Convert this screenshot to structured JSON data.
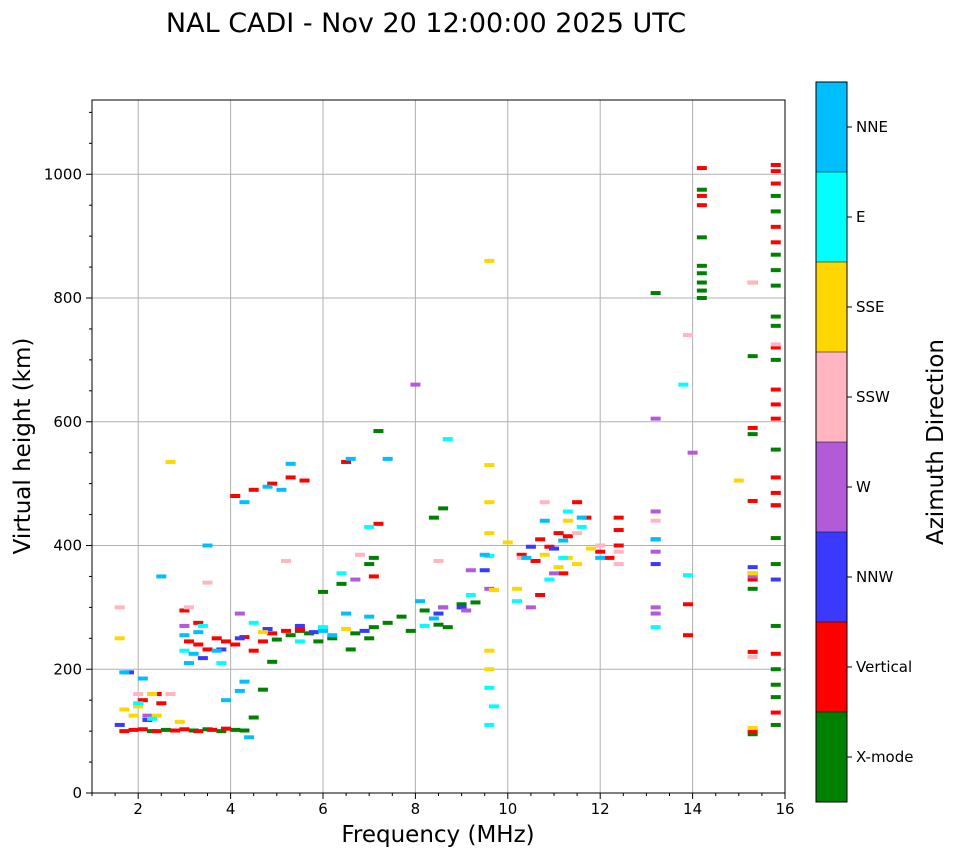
{
  "chart_data": {
    "type": "scatter",
    "title": "NAL CADI - Nov 20 12:00:00 2025 UTC",
    "xlabel": "Frequency (MHz)",
    "ylabel": "Virtual height (km)",
    "xlim": [
      1,
      16
    ],
    "ylim": [
      0,
      1120
    ],
    "xticks": [
      2,
      4,
      6,
      8,
      10,
      12,
      14,
      16
    ],
    "yticks": [
      0,
      200,
      400,
      600,
      800,
      1000
    ],
    "grid": true,
    "colorbar": {
      "label": "Azimuth Direction",
      "categories": [
        "X-mode",
        "Vertical",
        "NNW",
        "W",
        "SSW",
        "SSE",
        "E",
        "NNE"
      ],
      "colors": [
        "#008000",
        "#ff0000",
        "#3a3aff",
        "#b25ad8",
        "#ffb6c1",
        "#ffd700",
        "#00ffff",
        "#00bfff"
      ]
    },
    "series": [
      {
        "name": "X-mode",
        "points": [
          [
            2.3,
            100
          ],
          [
            2.6,
            102
          ],
          [
            3.2,
            101
          ],
          [
            3.5,
            103
          ],
          [
            3.8,
            100
          ],
          [
            4.1,
            102
          ],
          [
            4.3,
            101
          ],
          [
            4.5,
            122
          ],
          [
            4.7,
            167
          ],
          [
            4.9,
            212
          ],
          [
            5.0,
            248
          ],
          [
            5.3,
            255
          ],
          [
            5.5,
            262
          ],
          [
            5.7,
            258
          ],
          [
            5.9,
            245
          ],
          [
            6.2,
            250
          ],
          [
            6.6,
            232
          ],
          [
            6.7,
            258
          ],
          [
            7.0,
            250
          ],
          [
            7.1,
            268
          ],
          [
            7.4,
            275
          ],
          [
            7.7,
            285
          ],
          [
            7.9,
            262
          ],
          [
            8.2,
            295
          ],
          [
            8.5,
            272
          ],
          [
            8.6,
            300
          ],
          [
            8.7,
            268
          ],
          [
            9.0,
            305
          ],
          [
            9.3,
            308
          ],
          [
            6.0,
            325
          ],
          [
            6.4,
            338
          ],
          [
            7.0,
            370
          ],
          [
            7.1,
            380
          ],
          [
            7.2,
            585
          ],
          [
            8.4,
            445
          ],
          [
            8.6,
            460
          ],
          [
            13.2,
            808
          ],
          [
            14.2,
            800
          ],
          [
            14.2,
            812
          ],
          [
            14.2,
            825
          ],
          [
            14.2,
            840
          ],
          [
            14.2,
            852
          ],
          [
            14.2,
            898
          ],
          [
            14.2,
            975
          ],
          [
            15.3,
            825
          ],
          [
            15.3,
            706
          ],
          [
            15.3,
            580
          ],
          [
            15.3,
            95
          ],
          [
            15.3,
            330
          ],
          [
            15.8,
            110
          ],
          [
            15.8,
            155
          ],
          [
            15.8,
            175
          ],
          [
            15.8,
            200
          ],
          [
            15.8,
            270
          ],
          [
            15.8,
            370
          ],
          [
            15.8,
            412
          ],
          [
            15.8,
            465
          ],
          [
            15.8,
            555
          ],
          [
            15.8,
            700
          ],
          [
            15.8,
            755
          ],
          [
            15.8,
            770
          ],
          [
            15.8,
            820
          ],
          [
            15.8,
            845
          ],
          [
            15.8,
            870
          ],
          [
            15.8,
            940
          ],
          [
            15.8,
            965
          ]
        ]
      },
      {
        "name": "Vertical",
        "points": [
          [
            1.7,
            100
          ],
          [
            1.9,
            102
          ],
          [
            2.1,
            103
          ],
          [
            2.4,
            100
          ],
          [
            2.8,
            101
          ],
          [
            3.0,
            103
          ],
          [
            3.3,
            100
          ],
          [
            3.6,
            102
          ],
          [
            3.9,
            104
          ],
          [
            2.1,
            150
          ],
          [
            2.5,
            145
          ],
          [
            2.4,
            160
          ],
          [
            3.1,
            245
          ],
          [
            3.3,
            240
          ],
          [
            3.5,
            232
          ],
          [
            3.7,
            250
          ],
          [
            3.9,
            245
          ],
          [
            4.1,
            240
          ],
          [
            4.3,
            252
          ],
          [
            4.5,
            230
          ],
          [
            4.7,
            245
          ],
          [
            4.9,
            258
          ],
          [
            5.2,
            262
          ],
          [
            5.5,
            265
          ],
          [
            4.1,
            480
          ],
          [
            4.5,
            490
          ],
          [
            4.9,
            500
          ],
          [
            5.3,
            510
          ],
          [
            5.6,
            505
          ],
          [
            6.5,
            535
          ],
          [
            7.2,
            435
          ],
          [
            7.1,
            350
          ],
          [
            3.0,
            295
          ],
          [
            3.3,
            275
          ],
          [
            10.3,
            385
          ],
          [
            10.6,
            375
          ],
          [
            10.7,
            320
          ],
          [
            10.7,
            410
          ],
          [
            10.9,
            398
          ],
          [
            11.1,
            420
          ],
          [
            11.2,
            355
          ],
          [
            11.3,
            415
          ],
          [
            11.5,
            470
          ],
          [
            11.7,
            445
          ],
          [
            12.0,
            390
          ],
          [
            12.4,
            425
          ],
          [
            12.4,
            445
          ],
          [
            12.4,
            400
          ],
          [
            12.2,
            380
          ],
          [
            13.9,
            305
          ],
          [
            13.9,
            255
          ],
          [
            14.2,
            950
          ],
          [
            14.2,
            965
          ],
          [
            14.2,
            1010
          ],
          [
            15.3,
            472
          ],
          [
            15.3,
            590
          ],
          [
            15.3,
            345
          ],
          [
            15.3,
            355
          ],
          [
            15.3,
            100
          ],
          [
            15.3,
            228
          ],
          [
            15.8,
            130
          ],
          [
            15.8,
            225
          ],
          [
            15.8,
            465
          ],
          [
            15.8,
            485
          ],
          [
            15.8,
            510
          ],
          [
            15.8,
            605
          ],
          [
            15.8,
            628
          ],
          [
            15.8,
            652
          ],
          [
            15.8,
            720
          ],
          [
            15.8,
            890
          ],
          [
            15.8,
            915
          ],
          [
            15.8,
            985
          ],
          [
            15.8,
            1005
          ],
          [
            15.8,
            1015
          ]
        ]
      },
      {
        "name": "NNW",
        "points": [
          [
            1.6,
            110
          ],
          [
            1.8,
            195
          ],
          [
            2.2,
            118
          ],
          [
            3.4,
            218
          ],
          [
            3.8,
            232
          ],
          [
            4.2,
            250
          ],
          [
            4.8,
            265
          ],
          [
            5.5,
            270
          ],
          [
            5.8,
            260
          ],
          [
            6.9,
            262
          ],
          [
            8.5,
            290
          ],
          [
            9.0,
            300
          ],
          [
            9.5,
            360
          ],
          [
            10.5,
            398
          ],
          [
            11.0,
            395
          ],
          [
            13.2,
            370
          ],
          [
            13.2,
            410
          ],
          [
            15.3,
            365
          ],
          [
            15.8,
            345
          ]
        ]
      },
      {
        "name": "W",
        "points": [
          [
            2.2,
            125
          ],
          [
            3.0,
            270
          ],
          [
            4.2,
            290
          ],
          [
            6.7,
            345
          ],
          [
            8.0,
            660
          ],
          [
            8.6,
            300
          ],
          [
            9.1,
            295
          ],
          [
            9.2,
            360
          ],
          [
            9.6,
            330
          ],
          [
            10.5,
            300
          ],
          [
            11.0,
            355
          ],
          [
            13.2,
            290
          ],
          [
            13.2,
            300
          ],
          [
            13.2,
            390
          ],
          [
            13.2,
            455
          ],
          [
            13.2,
            605
          ],
          [
            14.0,
            550
          ],
          [
            15.3,
            350
          ]
        ]
      },
      {
        "name": "SSW",
        "points": [
          [
            1.6,
            300
          ],
          [
            2.0,
            160
          ],
          [
            2.7,
            160
          ],
          [
            3.1,
            300
          ],
          [
            3.5,
            340
          ],
          [
            5.2,
            375
          ],
          [
            6.8,
            385
          ],
          [
            8.5,
            375
          ],
          [
            10.3,
            380
          ],
          [
            10.8,
            470
          ],
          [
            11.5,
            420
          ],
          [
            12.0,
            400
          ],
          [
            12.4,
            370
          ],
          [
            12.4,
            390
          ],
          [
            13.2,
            440
          ],
          [
            13.9,
            740
          ],
          [
            15.3,
            220
          ],
          [
            15.3,
            825
          ],
          [
            15.8,
            725
          ]
        ]
      },
      {
        "name": "SSE",
        "points": [
          [
            1.6,
            250
          ],
          [
            1.7,
            135
          ],
          [
            1.9,
            125
          ],
          [
            2.0,
            140
          ],
          [
            2.3,
            160
          ],
          [
            2.4,
            125
          ],
          [
            2.7,
            535
          ],
          [
            2.9,
            115
          ],
          [
            4.7,
            260
          ],
          [
            6.5,
            265
          ],
          [
            9.6,
            860
          ],
          [
            9.6,
            530
          ],
          [
            9.6,
            470
          ],
          [
            9.6,
            420
          ],
          [
            9.6,
            230
          ],
          [
            9.6,
            200
          ],
          [
            9.7,
            328
          ],
          [
            10.0,
            405
          ],
          [
            10.2,
            330
          ],
          [
            10.8,
            385
          ],
          [
            11.1,
            365
          ],
          [
            11.3,
            380
          ],
          [
            11.5,
            370
          ],
          [
            11.3,
            440
          ],
          [
            11.8,
            395
          ],
          [
            15.0,
            505
          ],
          [
            15.3,
            355
          ],
          [
            15.3,
            105
          ]
        ]
      },
      {
        "name": "E",
        "points": [
          [
            2.0,
            145
          ],
          [
            2.3,
            120
          ],
          [
            3.0,
            230
          ],
          [
            3.4,
            270
          ],
          [
            3.8,
            210
          ],
          [
            4.5,
            275
          ],
          [
            5.5,
            245
          ],
          [
            6.0,
            268
          ],
          [
            6.4,
            355
          ],
          [
            7.0,
            430
          ],
          [
            8.2,
            270
          ],
          [
            8.7,
            572
          ],
          [
            9.2,
            320
          ],
          [
            9.6,
            170
          ],
          [
            9.6,
            110
          ],
          [
            9.6,
            383
          ],
          [
            10.2,
            310
          ],
          [
            10.9,
            345
          ],
          [
            11.2,
            380
          ],
          [
            11.3,
            455
          ],
          [
            11.6,
            430
          ],
          [
            13.2,
            268
          ],
          [
            13.8,
            660
          ],
          [
            13.9,
            352
          ],
          [
            9.7,
            140
          ]
        ]
      },
      {
        "name": "NNE",
        "points": [
          [
            1.7,
            195
          ],
          [
            2.1,
            185
          ],
          [
            2.5,
            350
          ],
          [
            3.0,
            255
          ],
          [
            3.1,
            210
          ],
          [
            3.2,
            225
          ],
          [
            3.3,
            260
          ],
          [
            3.5,
            400
          ],
          [
            3.7,
            230
          ],
          [
            3.9,
            150
          ],
          [
            4.2,
            165
          ],
          [
            4.3,
            180
          ],
          [
            4.4,
            90
          ],
          [
            4.3,
            470
          ],
          [
            4.8,
            495
          ],
          [
            5.1,
            490
          ],
          [
            5.3,
            532
          ],
          [
            6.0,
            262
          ],
          [
            6.2,
            255
          ],
          [
            6.5,
            290
          ],
          [
            6.6,
            540
          ],
          [
            7.0,
            285
          ],
          [
            7.4,
            540
          ],
          [
            8.1,
            310
          ],
          [
            8.4,
            282
          ],
          [
            9.5,
            385
          ],
          [
            10.4,
            380
          ],
          [
            10.8,
            440
          ],
          [
            11.2,
            408
          ],
          [
            11.6,
            445
          ],
          [
            12.0,
            380
          ],
          [
            13.2,
            410
          ]
        ]
      }
    ]
  }
}
